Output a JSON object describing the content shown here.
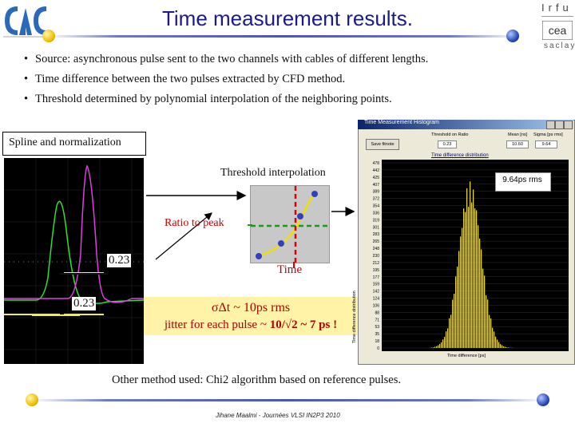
{
  "header": {
    "title": "Time measurement results.",
    "logo_right_top": "Irfu",
    "logo_right_mid": "cea",
    "logo_right_bottom": "saclay",
    "accent_color": "#1a1a8c"
  },
  "bullets": [
    "Source: asynchronous pulse sent to the two channels with cables of different lengths.",
    "Time difference between the two pulses extracted by CFD method.",
    "Threshold determined by polynomial interpolation of the neighboring points."
  ],
  "figure": {
    "spline_label": "Spline and normalization",
    "threshold_label": "Threshold interpolation",
    "ratio_label": "Ratio to peak",
    "time_label": "Time",
    "level_upper": "0.23",
    "level_lower": "0.23",
    "sigma_text": "σΔt ~ 10ps rms",
    "jitter_prefix": "jitter for each pulse ~ ",
    "jitter_value": "10/√2 ~ 7 ps !",
    "highlight_color": "#fff3a8"
  },
  "histogram_window": {
    "title": "Time Measurement Histogram",
    "button_label": "Save fitnote",
    "field_labels": [
      "Threshold on Ratio",
      "Mean [ns]",
      "Sigma [ps rms]"
    ],
    "field_values": [
      "0.23",
      "10.60",
      "9.64"
    ],
    "plot_title": "Time difference distribution",
    "rms_label": "9.64ps rms",
    "x_axis_label": "Time difference [ps]",
    "y_axis_label": "Time difference distribution"
  },
  "chart_data": {
    "type": "bar",
    "title": "Time difference distribution",
    "xlabel": "Time difference [ps]",
    "ylabel": "Time difference distribution",
    "yticks": [
      "478",
      "442",
      "425",
      "407",
      "389",
      "372",
      "354",
      "336",
      "319",
      "301",
      "283",
      "265",
      "248",
      "230",
      "212",
      "195",
      "177",
      "159",
      "142",
      "124",
      "106",
      "88",
      "71",
      "53",
      "35",
      "18",
      "0"
    ],
    "ylim": [
      0,
      478
    ],
    "color": "#f0e000"
  },
  "other_method": "Other method used: Chi2 algorithm based on reference pulses.",
  "footer": "Jihane Maalmi - Journées VLSI IN2P3 2010"
}
